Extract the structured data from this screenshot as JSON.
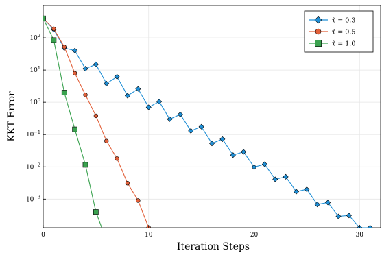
{
  "chart_data": {
    "type": "line",
    "xlabel": "Iteration Steps",
    "ylabel": "KKT Error",
    "yscale": "log",
    "xlim": [
      0,
      32
    ],
    "ylim": [
      0.00013,
      1000
    ],
    "x_ticks": [
      0,
      10,
      20,
      30
    ],
    "y_ticks": [
      {
        "value": 0.001,
        "base": "10",
        "exp": "−3"
      },
      {
        "value": 0.01,
        "base": "10",
        "exp": "−2"
      },
      {
        "value": 0.1,
        "base": "10",
        "exp": "−1"
      },
      {
        "value": 1,
        "base": "10",
        "exp": "0"
      },
      {
        "value": 10,
        "base": "10",
        "exp": "1"
      },
      {
        "value": 100,
        "base": "10",
        "exp": "2"
      }
    ],
    "grid": true,
    "legend_position": "top-right",
    "series": [
      {
        "name": "τ̃ = 0.3",
        "color": "#1f8fd6",
        "marker": "diamond",
        "points": [
          [
            0,
            400
          ],
          [
            1,
            180
          ],
          [
            2,
            48
          ],
          [
            3,
            40
          ],
          [
            4,
            11
          ],
          [
            5,
            15
          ],
          [
            6,
            3.8
          ],
          [
            7,
            6.2
          ],
          [
            8,
            1.6
          ],
          [
            9,
            2.6
          ],
          [
            10,
            0.7
          ],
          [
            11,
            1.05
          ],
          [
            12,
            0.3
          ],
          [
            13,
            0.42
          ],
          [
            14,
            0.13
          ],
          [
            15,
            0.175
          ],
          [
            16,
            0.053
          ],
          [
            17,
            0.072
          ],
          [
            18,
            0.023
          ],
          [
            19,
            0.029
          ],
          [
            20,
            0.0098
          ],
          [
            21,
            0.012
          ],
          [
            22,
            0.0041
          ],
          [
            23,
            0.0049
          ],
          [
            24,
            0.0017
          ],
          [
            25,
            0.002
          ],
          [
            26,
            0.00068
          ],
          [
            27,
            0.00078
          ],
          [
            28,
            0.00029
          ],
          [
            29,
            0.00031
          ],
          [
            30,
            0.00013
          ],
          [
            31,
            0.00013
          ]
        ]
      },
      {
        "name": "τ̃ = 0.5",
        "color": "#e2603a",
        "marker": "circle",
        "points": [
          [
            0,
            400
          ],
          [
            1,
            190
          ],
          [
            2,
            52
          ],
          [
            3,
            8
          ],
          [
            4,
            1.7
          ],
          [
            5,
            0.38
          ],
          [
            6,
            0.063
          ],
          [
            7,
            0.018
          ],
          [
            8,
            0.0031
          ],
          [
            9,
            0.0009
          ],
          [
            10,
            0.00013
          ]
        ]
      },
      {
        "name": "τ̃ = 1.0",
        "color": "#3aa24f",
        "marker": "square",
        "points": [
          [
            0,
            400
          ],
          [
            1,
            85
          ],
          [
            2,
            2
          ],
          [
            3,
            0.145
          ],
          [
            4,
            0.0115
          ],
          [
            5,
            0.0004
          ],
          [
            5.55,
            0.00013
          ]
        ],
        "markers_count": 6
      }
    ]
  }
}
